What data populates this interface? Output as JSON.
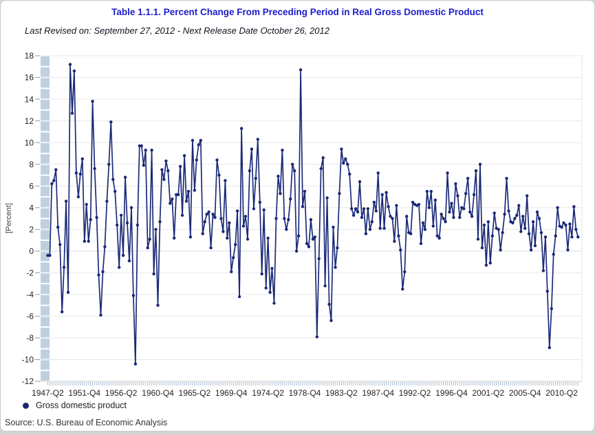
{
  "header": {
    "title": "Table 1.1.1. Percent Change From Preceding Period in Real Gross Domestic Product",
    "subtitle": "Last Revised on: September 27, 2012 - Next Release Date October 26, 2012"
  },
  "legend": {
    "series_label": "Gross domestic product",
    "marker": "filled-circle"
  },
  "footer": {
    "source": "Source: U.S. Bureau of Economic  Analysis"
  },
  "colors": {
    "title": "#1b1bcd",
    "subtitle": "#10101e",
    "line": "#1b2a78",
    "marker": "#1a2874",
    "grid": "#e7e7e7",
    "grid_zero": "#d8dee6",
    "axis_bottom": "#cfcfcf",
    "axis_band": "#c0cfde",
    "tick_comb": "#b7c7d8",
    "tick_dash": "#999999",
    "tick_text": "#222222",
    "source": "#333333"
  },
  "chart_data": {
    "type": "line",
    "title": "Table 1.1.1. Percent Change From Preceding Period in Real Gross Domestic Product",
    "xlabel": "",
    "ylabel": "[Percent]",
    "ylim": [
      -12,
      18
    ],
    "y_tick_step": 2,
    "grid": "horizontal",
    "legend_position": "bottom-left",
    "marker": "point",
    "x_start": "1947-Q2",
    "x_end": "2012-Q2",
    "frequency": "quarterly",
    "x_tick_labels": [
      "1947-Q2",
      "1951-Q4",
      "1956-Q2",
      "1960-Q4",
      "1965-Q2",
      "1969-Q4",
      "1974-Q2",
      "1978-Q4",
      "1983-Q2",
      "1987-Q4",
      "1992-Q2",
      "1996-Q4",
      "2001-Q2",
      "2005-Q4",
      "2010-Q2"
    ],
    "x_tick_interval_quarters": 18,
    "series": [
      {
        "name": "Gross domestic product",
        "values": [
          -0.4,
          -0.4,
          6.2,
          6.5,
          7.5,
          2.2,
          0.6,
          -5.6,
          -1.5,
          4.6,
          -3.8,
          17.2,
          12.7,
          16.6,
          7.2,
          5.0,
          7.1,
          8.5,
          0.9,
          4.3,
          0.9,
          2.9,
          13.8,
          7.6,
          3.1,
          -2.2,
          -5.9,
          -1.9,
          0.4,
          4.6,
          8.0,
          11.9,
          6.6,
          5.5,
          2.4,
          -1.5,
          3.3,
          -0.4,
          6.8,
          2.6,
          -0.9,
          4.0,
          -4.1,
          -10.4,
          2.4,
          9.7,
          9.7,
          7.9,
          9.3,
          0.3,
          1.1,
          9.3,
          -2.1,
          2.0,
          -5.0,
          2.7,
          7.5,
          6.6,
          8.3,
          7.4,
          4.4,
          4.8,
          1.2,
          5.2,
          5.2,
          7.8,
          3.3,
          8.8,
          4.6,
          5.5,
          1.3,
          10.2,
          5.6,
          8.4,
          9.8,
          10.2,
          1.6,
          2.7,
          3.4,
          3.6,
          0.3,
          3.4,
          3.1,
          8.4,
          7.0,
          3.0,
          1.8,
          6.5,
          1.2,
          2.6,
          -1.9,
          -0.6,
          0.6,
          3.7,
          -4.2,
          11.3,
          2.3,
          3.2,
          1.1,
          7.4,
          9.4,
          3.9,
          6.7,
          10.3,
          4.5,
          -2.1,
          3.8,
          -3.4,
          1.2,
          -3.8,
          -1.6,
          -4.8,
          3.0,
          6.9,
          5.3,
          9.3,
          3.0,
          2.0,
          2.9,
          4.8,
          8.0,
          7.4,
          0.0,
          1.4,
          16.7,
          4.1,
          5.5,
          0.7,
          0.4,
          2.9,
          1.1,
          1.3,
          -7.9,
          -0.7,
          7.6,
          8.6,
          -3.2,
          4.9,
          -4.9,
          -6.4,
          2.2,
          -1.5,
          0.3,
          5.3,
          9.4,
          8.1,
          8.5,
          8.0,
          7.1,
          3.9,
          3.3,
          3.9,
          3.6,
          6.4,
          3.1,
          3.9,
          1.6,
          3.9,
          2.0,
          2.7,
          4.5,
          3.7,
          7.2,
          2.1,
          5.2,
          2.1,
          5.4,
          4.1,
          3.2,
          3.0,
          0.9,
          4.2,
          1.4,
          0.1,
          -3.5,
          -1.9,
          3.2,
          1.7,
          1.6,
          4.5,
          4.3,
          4.2,
          4.3,
          0.7,
          2.6,
          2.0,
          5.5,
          4.0,
          5.5,
          2.3,
          4.7,
          1.4,
          1.2,
          3.4,
          3.0,
          2.7,
          7.2,
          3.6,
          4.4,
          3.1,
          6.2,
          5.1,
          3.1,
          4.0,
          3.9,
          5.3,
          6.7,
          3.6,
          3.2,
          5.2,
          7.4,
          1.1,
          8.0,
          0.3,
          2.4,
          -1.3,
          2.7,
          -1.1,
          1.4,
          3.5,
          2.1,
          2.0,
          0.1,
          1.7,
          3.4,
          6.7,
          3.7,
          2.7,
          2.6,
          3.0,
          3.3,
          4.2,
          1.8,
          3.2,
          2.1,
          5.1,
          1.6,
          0.1,
          2.7,
          0.5,
          3.6,
          3.0,
          1.7,
          -1.8,
          1.3,
          -3.7,
          -8.9,
          -5.3,
          -0.3,
          1.4,
          4.0,
          2.3,
          2.2,
          2.6,
          2.4,
          0.1,
          2.5,
          1.3,
          4.1,
          2.0,
          1.3
        ]
      }
    ]
  }
}
